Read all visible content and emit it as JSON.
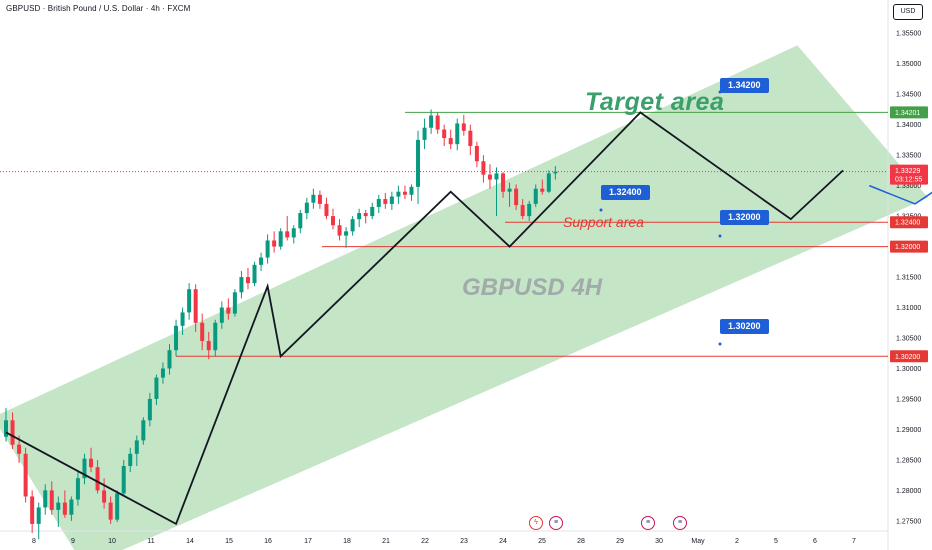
{
  "header": {
    "symbol_title": "GBPUSD · British Pound / U.S. Dollar · 4h · FXCM",
    "currency": "USD"
  },
  "watermark": "GBPUSD 4H",
  "annotations": {
    "target_text": "Target area",
    "support_text": "Support area",
    "callouts": [
      "1.34200",
      "1.32400",
      "1.32000",
      "1.30200"
    ]
  },
  "colors": {
    "up": "#089981",
    "down": "#f23645",
    "channel_fill": "#4caf50",
    "level_red": "#e53935",
    "level_green": "#43a047",
    "projection": "#1e5fd6",
    "zigzag": "#131722"
  },
  "chart_data": {
    "type": "candlestick",
    "y_axis_ticks": [
      "1.35500",
      "1.35000",
      "1.34500",
      "1.34000",
      "1.33500",
      "1.33000",
      "1.32500",
      "1.32000",
      "1.31500",
      "1.31000",
      "1.30500",
      "1.30000",
      "1.29500",
      "1.29000",
      "1.28500",
      "1.28000",
      "1.27500"
    ],
    "ylim": [
      1.2735,
      1.3575
    ],
    "x_axis_labels": [
      "8",
      "9",
      "10",
      "11",
      "14",
      "15",
      "16",
      "17",
      "18",
      "21",
      "22",
      "23",
      "24",
      "25",
      "28",
      "29",
      "30",
      "May",
      "2",
      "5",
      "6",
      "7"
    ],
    "current_price": {
      "value": "1.33229",
      "countdown": "03:12:55"
    },
    "price_tags": [
      {
        "text": "1.34201",
        "color": "#43a047"
      },
      {
        "text": "1.32400",
        "color": "#e53935"
      },
      {
        "text": "1.32000",
        "color": "#e53935"
      },
      {
        "text": "1.30200",
        "color": "#e53935"
      }
    ],
    "levels": [
      {
        "price": 1.34201,
        "color": "#43a047"
      },
      {
        "price": 1.324,
        "color": "#e53935"
      },
      {
        "price": 1.32,
        "color": "#e53935"
      },
      {
        "price": 1.302,
        "color": "#e53935"
      },
      {
        "price": 1.33229,
        "color": "#f23645",
        "dotted": true
      }
    ],
    "zigzag": [
      [
        1.2895,
        0
      ],
      [
        1.2745,
        26
      ],
      [
        1.3135,
        40
      ],
      [
        1.302,
        42
      ],
      [
        1.329,
        68
      ],
      [
        1.32,
        77
      ],
      [
        1.342,
        97
      ],
      [
        1.3245,
        120
      ],
      [
        1.3325,
        128
      ]
    ],
    "channel": [
      [
        1.292,
        -2
      ],
      [
        1.353,
        121
      ],
      [
        1.328,
        141
      ],
      [
        1.2675,
        12
      ]
    ],
    "projection": [
      [
        1.33,
        132
      ],
      [
        1.327,
        139
      ],
      [
        1.3385,
        155
      ]
    ],
    "candles": [
      [
        1.2888,
        1.2935,
        1.288,
        1.2915
      ],
      [
        1.2915,
        1.2928,
        1.2868,
        1.2875
      ],
      [
        1.2875,
        1.289,
        1.2845,
        1.286
      ],
      [
        1.286,
        1.287,
        1.278,
        1.279
      ],
      [
        1.279,
        1.28,
        1.273,
        1.2745
      ],
      [
        1.2745,
        1.278,
        1.272,
        1.2772
      ],
      [
        1.2772,
        1.281,
        1.276,
        1.28
      ],
      [
        1.28,
        1.2815,
        1.276,
        1.2768
      ],
      [
        1.2768,
        1.279,
        1.274,
        1.278
      ],
      [
        1.278,
        1.28,
        1.2755,
        1.276
      ],
      [
        1.276,
        1.279,
        1.275,
        1.2785
      ],
      [
        1.2785,
        1.283,
        1.2775,
        1.282
      ],
      [
        1.282,
        1.286,
        1.281,
        1.2852
      ],
      [
        1.2852,
        1.287,
        1.283,
        1.2838
      ],
      [
        1.2838,
        1.285,
        1.2795,
        1.28
      ],
      [
        1.28,
        1.282,
        1.277,
        1.278
      ],
      [
        1.278,
        1.279,
        1.2745,
        1.2752
      ],
      [
        1.2752,
        1.28,
        1.2748,
        1.2795
      ],
      [
        1.2795,
        1.285,
        1.279,
        1.284
      ],
      [
        1.284,
        1.287,
        1.283,
        1.286
      ],
      [
        1.286,
        1.289,
        1.284,
        1.2882
      ],
      [
        1.2882,
        1.292,
        1.2875,
        1.2915
      ],
      [
        1.2915,
        1.296,
        1.2905,
        1.295
      ],
      [
        1.295,
        1.299,
        1.294,
        1.2985
      ],
      [
        1.2985,
        1.301,
        1.2975,
        1.3
      ],
      [
        1.3,
        1.304,
        1.299,
        1.303
      ],
      [
        1.303,
        1.308,
        1.302,
        1.307
      ],
      [
        1.307,
        1.31,
        1.3055,
        1.3092
      ],
      [
        1.3092,
        1.314,
        1.308,
        1.313
      ],
      [
        1.313,
        1.3138,
        1.306,
        1.3075
      ],
      [
        1.3075,
        1.309,
        1.303,
        1.3045
      ],
      [
        1.3045,
        1.306,
        1.3015,
        1.303
      ],
      [
        1.303,
        1.308,
        1.302,
        1.3075
      ],
      [
        1.3075,
        1.311,
        1.3065,
        1.31
      ],
      [
        1.31,
        1.3115,
        1.308,
        1.309
      ],
      [
        1.309,
        1.313,
        1.3085,
        1.3125
      ],
      [
        1.3125,
        1.316,
        1.3115,
        1.315
      ],
      [
        1.315,
        1.3165,
        1.313,
        1.314
      ],
      [
        1.314,
        1.3175,
        1.3135,
        1.317
      ],
      [
        1.317,
        1.319,
        1.316,
        1.3182
      ],
      [
        1.3182,
        1.322,
        1.3172,
        1.321
      ],
      [
        1.321,
        1.3225,
        1.319,
        1.32
      ],
      [
        1.32,
        1.323,
        1.3195,
        1.3225
      ],
      [
        1.3225,
        1.325,
        1.321,
        1.3215
      ],
      [
        1.3215,
        1.3235,
        1.3205,
        1.323
      ],
      [
        1.323,
        1.326,
        1.3222,
        1.3255
      ],
      [
        1.3255,
        1.328,
        1.3245,
        1.3272
      ],
      [
        1.3272,
        1.3295,
        1.3262,
        1.3285
      ],
      [
        1.3285,
        1.3292,
        1.3262,
        1.327
      ],
      [
        1.327,
        1.328,
        1.3245,
        1.325
      ],
      [
        1.325,
        1.3262,
        1.3228,
        1.3235
      ],
      [
        1.3235,
        1.3245,
        1.321,
        1.3218
      ],
      [
        1.3218,
        1.3232,
        1.3198,
        1.3225
      ],
      [
        1.3225,
        1.325,
        1.3218,
        1.3245
      ],
      [
        1.3245,
        1.3262,
        1.3232,
        1.3255
      ],
      [
        1.3255,
        1.326,
        1.3238,
        1.325
      ],
      [
        1.325,
        1.3272,
        1.3245,
        1.3265
      ],
      [
        1.3265,
        1.3285,
        1.3255,
        1.3278
      ],
      [
        1.3278,
        1.3288,
        1.3262,
        1.327
      ],
      [
        1.327,
        1.329,
        1.326,
        1.3282
      ],
      [
        1.3282,
        1.33,
        1.327,
        1.329
      ],
      [
        1.329,
        1.33,
        1.3278,
        1.3285
      ],
      [
        1.3285,
        1.3302,
        1.3275,
        1.3298
      ],
      [
        1.3298,
        1.339,
        1.327,
        1.3375
      ],
      [
        1.3375,
        1.341,
        1.336,
        1.3395
      ],
      [
        1.3395,
        1.3425,
        1.3385,
        1.3415
      ],
      [
        1.3415,
        1.342,
        1.3385,
        1.3392
      ],
      [
        1.3392,
        1.34,
        1.3365,
        1.3378
      ],
      [
        1.3378,
        1.3392,
        1.336,
        1.3368
      ],
      [
        1.3368,
        1.341,
        1.3358,
        1.3402
      ],
      [
        1.3402,
        1.3416,
        1.3382,
        1.339
      ],
      [
        1.339,
        1.34,
        1.335,
        1.3365
      ],
      [
        1.3365,
        1.3372,
        1.333,
        1.334
      ],
      [
        1.334,
        1.335,
        1.3305,
        1.3318
      ],
      [
        1.3318,
        1.3335,
        1.3295,
        1.331
      ],
      [
        1.331,
        1.333,
        1.325,
        1.332
      ],
      [
        1.332,
        1.3322,
        1.328,
        1.329
      ],
      [
        1.329,
        1.3305,
        1.3265,
        1.3295
      ],
      [
        1.3295,
        1.3302,
        1.326,
        1.3268
      ],
      [
        1.3268,
        1.3278,
        1.3245,
        1.325
      ],
      [
        1.325,
        1.3275,
        1.3242,
        1.327
      ],
      [
        1.327,
        1.3302,
        1.3265,
        1.3295
      ],
      [
        1.3295,
        1.331,
        1.3285,
        1.329
      ],
      [
        1.329,
        1.3325,
        1.3288,
        1.332
      ],
      [
        1.332,
        1.3332,
        1.331,
        1.3323
      ]
    ]
  }
}
